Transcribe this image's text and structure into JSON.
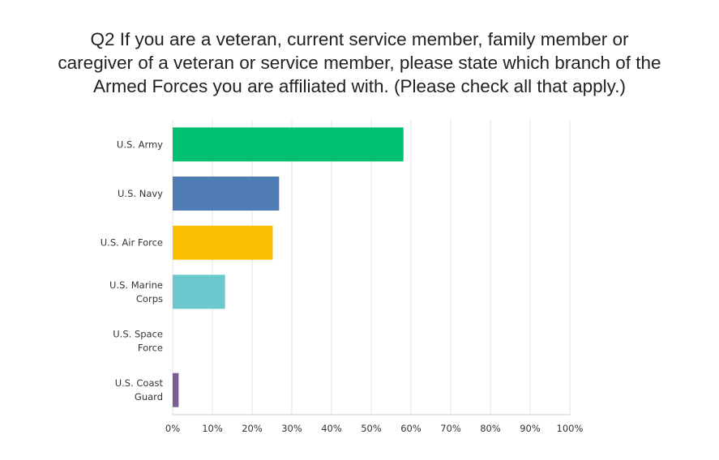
{
  "chart_data": {
    "type": "bar",
    "orientation": "horizontal",
    "title_lines": [
      "Q2 If you are a veteran, current service member, family member or",
      "caregiver of a veteran or service member, please state which branch of the",
      "Armed Forces you are affiliated with. (Please check all that apply.)"
    ],
    "categories": [
      [
        "U.S. Army"
      ],
      [
        "U.S. Navy"
      ],
      [
        "U.S. Air Force"
      ],
      [
        "U.S. Marine",
        "Corps"
      ],
      [
        "U.S. Space",
        "Force"
      ],
      [
        "U.S. Coast",
        "Guard"
      ]
    ],
    "values": [
      58.1,
      26.8,
      25.2,
      13.2,
      0,
      1.5
    ],
    "colors": [
      "#00bf6f",
      "#507cb6",
      "#f9be00",
      "#6bc8cd",
      "#ff8b4f",
      "#7d5e90"
    ],
    "xlim": [
      0,
      100
    ],
    "xticks": [
      "0%",
      "10%",
      "20%",
      "30%",
      "40%",
      "50%",
      "60%",
      "70%",
      "80%",
      "90%",
      "100%"
    ],
    "grid": true,
    "xlabel": "",
    "ylabel": ""
  }
}
